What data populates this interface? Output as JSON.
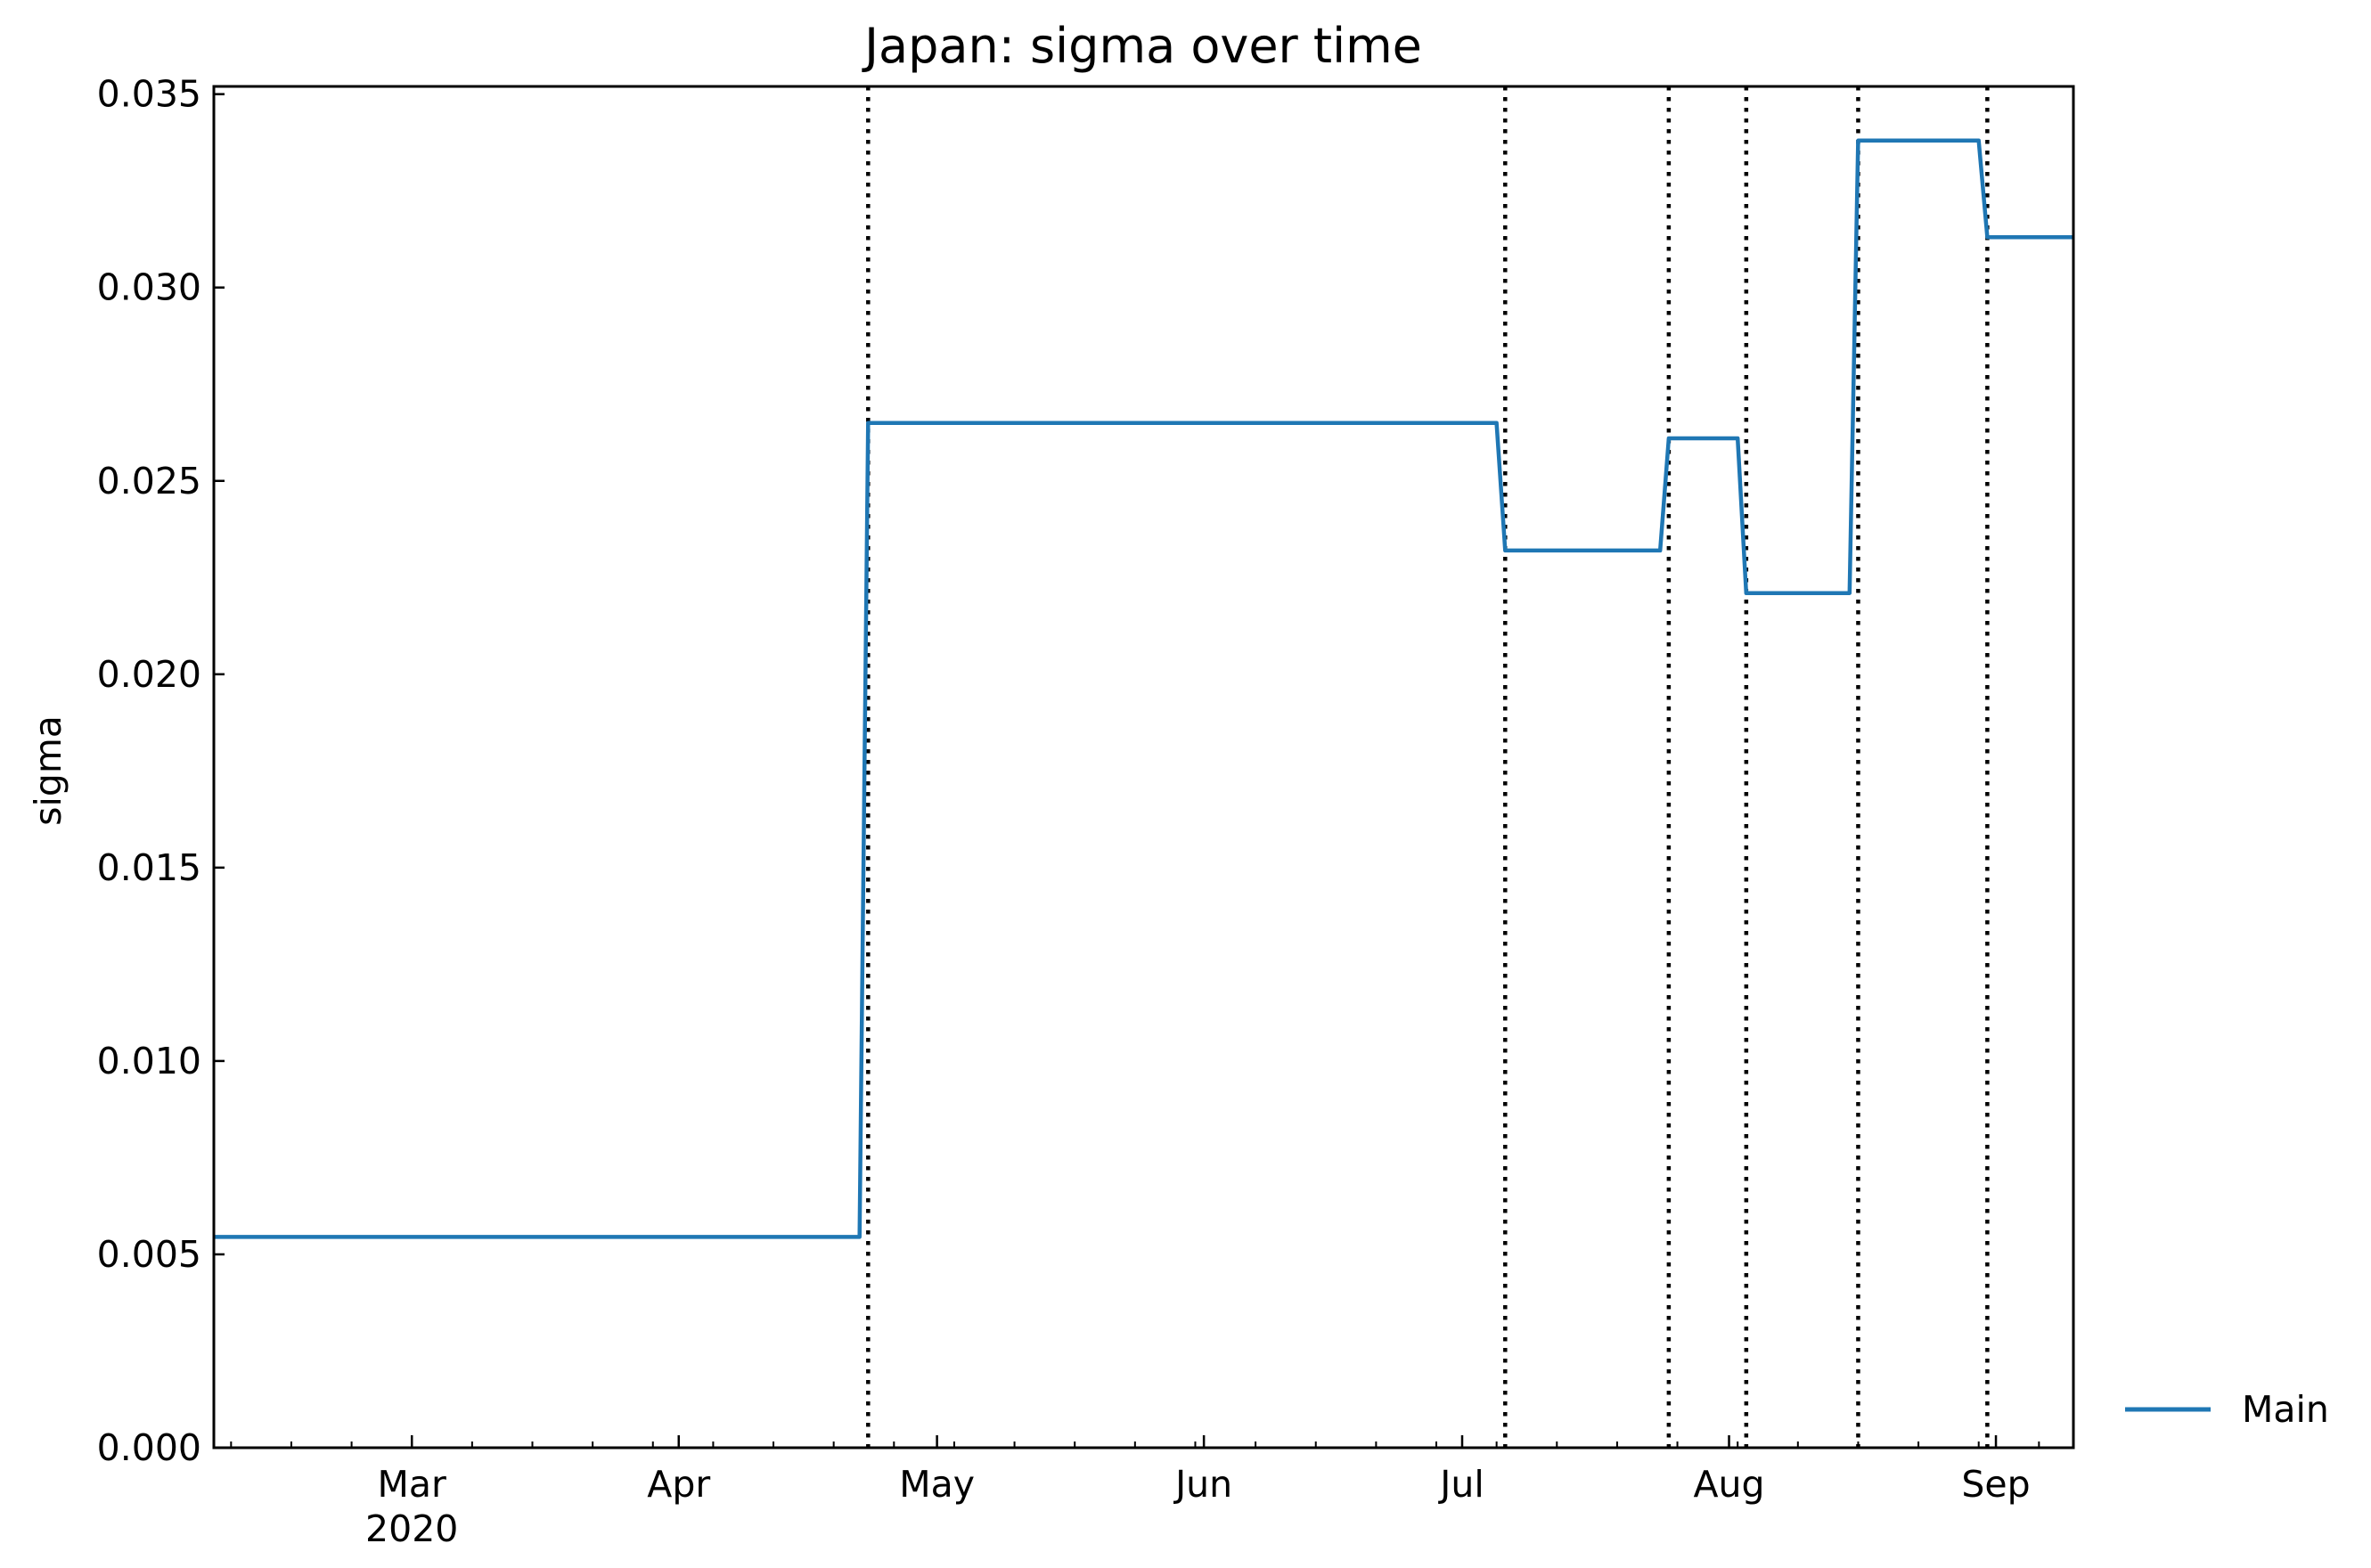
{
  "chart_data": {
    "type": "line",
    "title": "Japan: sigma over time",
    "xlabel": "",
    "ylabel": "sigma",
    "x_axis": {
      "type": "date",
      "range": [
        "2020-02-07",
        "2020-09-10"
      ],
      "major_ticks": [
        {
          "date": "2020-03-01",
          "label": "Mar",
          "sublabel": "2020"
        },
        {
          "date": "2020-04-01",
          "label": "Apr"
        },
        {
          "date": "2020-05-01",
          "label": "May"
        },
        {
          "date": "2020-06-01",
          "label": "Jun"
        },
        {
          "date": "2020-07-01",
          "label": "Jul"
        },
        {
          "date": "2020-08-01",
          "label": "Aug"
        },
        {
          "date": "2020-09-01",
          "label": "Sep"
        }
      ],
      "minor_tick_interval_days": 7
    },
    "y_axis": {
      "range": [
        0.0,
        0.0352
      ],
      "ticks": [
        {
          "value": 0.0,
          "label": "0.000"
        },
        {
          "value": 0.005,
          "label": "0.005"
        },
        {
          "value": 0.01,
          "label": "0.010"
        },
        {
          "value": 0.015,
          "label": "0.015"
        },
        {
          "value": 0.02,
          "label": "0.020"
        },
        {
          "value": 0.025,
          "label": "0.025"
        },
        {
          "value": 0.03,
          "label": "0.030"
        },
        {
          "value": 0.035,
          "label": "0.035"
        }
      ]
    },
    "series": [
      {
        "name": "Main",
        "color": "#1f77b4",
        "points": [
          {
            "x": "2020-02-07",
            "y": 0.00545
          },
          {
            "x": "2020-04-22",
            "y": 0.00545
          },
          {
            "x": "2020-04-23",
            "y": 0.0265
          },
          {
            "x": "2020-07-05",
            "y": 0.0265
          },
          {
            "x": "2020-07-06",
            "y": 0.0232
          },
          {
            "x": "2020-07-24",
            "y": 0.0232
          },
          {
            "x": "2020-07-25",
            "y": 0.0261
          },
          {
            "x": "2020-08-02",
            "y": 0.0261
          },
          {
            "x": "2020-08-03",
            "y": 0.0221
          },
          {
            "x": "2020-08-15",
            "y": 0.0221
          },
          {
            "x": "2020-08-16",
            "y": 0.0338
          },
          {
            "x": "2020-08-30",
            "y": 0.0338
          },
          {
            "x": "2020-08-31",
            "y": 0.0313
          },
          {
            "x": "2020-09-10",
            "y": 0.0313
          }
        ]
      }
    ],
    "vertical_lines": {
      "style": "dotted",
      "color": "#000000",
      "dates": [
        "2020-04-23",
        "2020-07-06",
        "2020-07-25",
        "2020-08-03",
        "2020-08-16",
        "2020-08-31"
      ]
    },
    "legend": {
      "placement": "right, outside plot, bottom",
      "entries": [
        "Main"
      ]
    },
    "grid": false
  }
}
